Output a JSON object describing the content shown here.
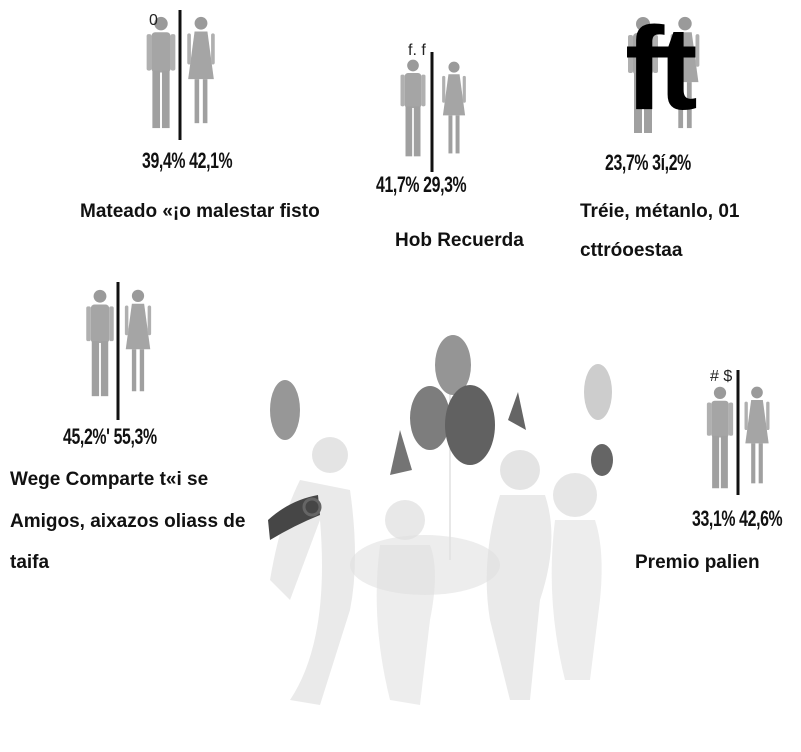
{
  "groups": [
    {
      "marker": "0",
      "percents": [
        "39,4%",
        "42,1%"
      ],
      "caption": [
        "Mateado «¡o malestar fisto"
      ]
    },
    {
      "marker": "f. f",
      "percents": [
        "41,7%",
        "29,3%"
      ],
      "caption": [
        "Hob Recuerda"
      ]
    },
    {
      "marker": "ft",
      "percents": [
        "23,7%",
        "3í,2%"
      ],
      "caption": [
        "Tréie, métanlo, 01",
        "cttróoestaa"
      ]
    },
    {
      "percents": [
        "45,2%'",
        "55,3%"
      ],
      "caption": [
        "Wege Comparte t«i se",
        "Amigos, aixazos oliass de",
        "taifa"
      ]
    },
    {
      "marker": "# $",
      "percents": [
        "33,1%",
        "42,6%"
      ],
      "caption": [
        "Premio palien"
      ]
    }
  ]
}
